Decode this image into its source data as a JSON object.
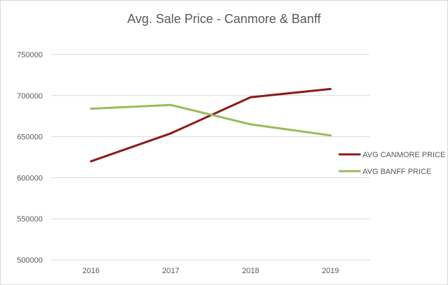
{
  "chart_data": {
    "type": "line",
    "title": "Avg. Sale Price - Canmore & Banff",
    "categories": [
      "2016",
      "2017",
      "2018",
      "2019"
    ],
    "ylim": [
      500000,
      750000
    ],
    "yticks": [
      "500000",
      "550000",
      "600000",
      "650000",
      "700000",
      "750000"
    ],
    "grid": true,
    "legend_position": "right",
    "series": [
      {
        "name": "AVG CANMORE PRICE",
        "color": "#8b1a1a",
        "values": [
          620000,
          654000,
          698000,
          708000
        ]
      },
      {
        "name": "AVG BANFF PRICE",
        "color": "#9bbb59",
        "values": [
          684000,
          688500,
          665000,
          651500
        ]
      }
    ]
  }
}
